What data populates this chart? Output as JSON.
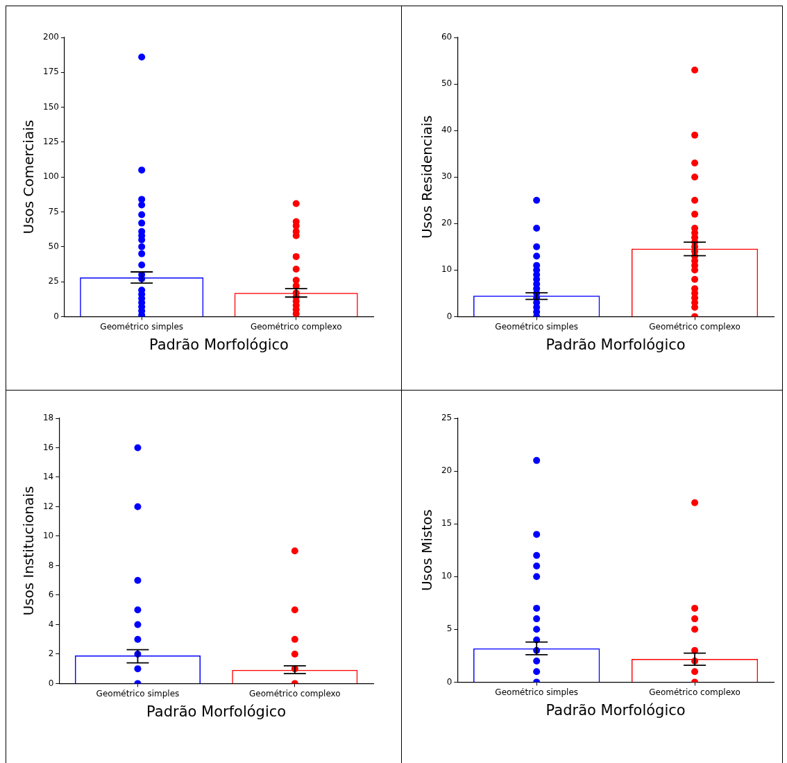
{
  "chart_data": [
    {
      "type": "bar",
      "xlabel": "Padrão Morfológico",
      "ylabel": "Usos Comerciais",
      "categories": [
        "Geométrico simples",
        "Geométrico complexo"
      ],
      "ylim": [
        0,
        200
      ],
      "yticks": [
        0,
        25,
        50,
        75,
        100,
        125,
        150,
        175,
        200
      ],
      "series": [
        {
          "colors": [
            "#0000ff",
            "#ff0000"
          ],
          "values": [
            28,
            17
          ],
          "errors": [
            [
              24,
              32
            ],
            [
              14,
              20
            ]
          ]
        },
        {
          "type": "scatter",
          "marker": "circle",
          "color": "#0000ff",
          "x": [
            "Geométrico simples",
            "Geométrico simples",
            "Geométrico simples",
            "Geométrico simples",
            "Geométrico simples",
            "Geométrico simples",
            "Geométrico simples",
            "Geométrico simples",
            "Geométrico simples",
            "Geométrico simples",
            "Geométrico simples",
            "Geométrico simples",
            "Geométrico simples",
            "Geométrico simples",
            "Geométrico simples",
            "Geométrico simples",
            "Geométrico simples",
            "Geométrico simples",
            "Geométrico simples",
            "Geométrico simples",
            "Geométrico simples"
          ],
          "values": [
            186,
            105,
            84,
            80,
            73,
            67,
            61,
            58,
            55,
            50,
            45,
            37,
            30,
            27,
            19,
            16,
            13,
            10,
            7,
            4,
            1
          ]
        },
        {
          "type": "scatter",
          "marker": "circle",
          "color": "#ff0000",
          "x": [
            "Geométrico complexo",
            "Geométrico complexo",
            "Geométrico complexo",
            "Geométrico complexo",
            "Geométrico complexo",
            "Geométrico complexo",
            "Geométrico complexo",
            "Geométrico complexo",
            "Geométrico complexo",
            "Geométrico complexo",
            "Geométrico complexo",
            "Geométrico complexo",
            "Geométrico complexo",
            "Geométrico complexo",
            "Geométrico complexo"
          ],
          "values": [
            81,
            68,
            65,
            61,
            58,
            43,
            34,
            26,
            22,
            17,
            14,
            11,
            8,
            5,
            2
          ]
        }
      ]
    },
    {
      "type": "bar",
      "xlabel": "Padrão Morfológico",
      "ylabel": "Usos Residenciais",
      "categories": [
        "Geométrico simples",
        "Geométrico complexo"
      ],
      "ylim": [
        0,
        60
      ],
      "yticks": [
        0,
        10,
        20,
        30,
        40,
        50,
        60
      ],
      "series": [
        {
          "colors": [
            "#0000ff",
            "#ff0000"
          ],
          "values": [
            4.5,
            14.6
          ],
          "errors": [
            [
              3.7,
              5.1
            ],
            [
              13.1,
              16
            ]
          ]
        },
        {
          "type": "scatter",
          "marker": "circle",
          "color": "#0000ff",
          "x": [
            "Geométrico simples",
            "Geométrico simples",
            "Geométrico simples",
            "Geométrico simples",
            "Geométrico simples",
            "Geométrico simples",
            "Geométrico simples",
            "Geométrico simples",
            "Geométrico simples",
            "Geométrico simples",
            "Geométrico simples",
            "Geométrico simples",
            "Geométrico simples",
            "Geométrico simples",
            "Geométrico simples",
            "Geométrico simples"
          ],
          "values": [
            25,
            19,
            15,
            13,
            11,
            10,
            9,
            8,
            7,
            6,
            5,
            4,
            3,
            2,
            1,
            0
          ]
        },
        {
          "type": "scatter",
          "marker": "circle",
          "color": "#ff0000",
          "x": [
            "Geométrico complexo",
            "Geométrico complexo",
            "Geométrico complexo",
            "Geométrico complexo",
            "Geométrico complexo",
            "Geométrico complexo",
            "Geométrico complexo",
            "Geométrico complexo",
            "Geométrico complexo",
            "Geométrico complexo",
            "Geométrico complexo",
            "Geométrico complexo",
            "Geométrico complexo",
            "Geométrico complexo",
            "Geométrico complexo",
            "Geométrico complexo",
            "Geométrico complexo",
            "Geométrico complexo",
            "Geométrico complexo",
            "Geométrico complexo",
            "Geométrico complexo",
            "Geométrico complexo",
            "Geométrico complexo"
          ],
          "values": [
            53,
            39,
            33,
            30,
            25,
            22,
            19,
            18,
            17,
            16,
            15,
            14,
            13,
            12,
            11,
            10,
            8,
            6,
            5,
            4,
            3,
            2,
            0
          ]
        }
      ]
    },
    {
      "type": "bar",
      "xlabel": "Padrão Morfológico",
      "ylabel": "Usos Institucionais",
      "categories": [
        "Geométrico simples",
        "Geométrico complexo"
      ],
      "ylim": [
        0,
        18
      ],
      "yticks": [
        0,
        2,
        4,
        6,
        8,
        10,
        12,
        14,
        16,
        18
      ],
      "series": [
        {
          "colors": [
            "#0000ff",
            "#ff0000"
          ],
          "values": [
            1.9,
            0.93
          ],
          "errors": [
            [
              1.4,
              2.3
            ],
            [
              0.67,
              1.2
            ]
          ]
        },
        {
          "type": "scatter",
          "marker": "circle",
          "color": "#0000ff",
          "x": [
            "Geométrico simples",
            "Geométrico simples",
            "Geométrico simples",
            "Geométrico simples",
            "Geométrico simples",
            "Geométrico simples",
            "Geométrico simples",
            "Geométrico simples",
            "Geométrico simples"
          ],
          "values": [
            16,
            12,
            7,
            5,
            4,
            3,
            2,
            1,
            0
          ]
        },
        {
          "type": "scatter",
          "marker": "circle",
          "color": "#ff0000",
          "x": [
            "Geométrico complexo",
            "Geométrico complexo",
            "Geométrico complexo",
            "Geométrico complexo",
            "Geométrico complexo",
            "Geométrico complexo"
          ],
          "values": [
            9,
            5,
            3,
            2,
            1,
            0
          ]
        }
      ]
    },
    {
      "type": "bar",
      "xlabel": "Padrão Morfológico",
      "ylabel": "Usos Mistos",
      "categories": [
        "Geométrico simples",
        "Geométrico complexo"
      ],
      "ylim": [
        0,
        25
      ],
      "yticks": [
        0,
        5,
        10,
        15,
        20,
        25
      ],
      "series": [
        {
          "colors": [
            "#0000ff",
            "#ff0000"
          ],
          "values": [
            3.2,
            2.2
          ],
          "errors": [
            [
              2.6,
              3.8
            ],
            [
              1.6,
              2.75
            ]
          ]
        },
        {
          "type": "scatter",
          "marker": "circle",
          "color": "#0000ff",
          "x": [
            "Geométrico simples",
            "Geométrico simples",
            "Geométrico simples",
            "Geométrico simples",
            "Geométrico simples",
            "Geométrico simples",
            "Geométrico simples",
            "Geométrico simples",
            "Geométrico simples",
            "Geométrico simples",
            "Geométrico simples",
            "Geométrico simples",
            "Geométrico simples"
          ],
          "values": [
            21,
            14,
            12,
            11,
            10,
            7,
            6,
            5,
            4,
            3,
            2,
            1,
            0
          ]
        },
        {
          "type": "scatter",
          "marker": "circle",
          "color": "#ff0000",
          "x": [
            "Geométrico complexo",
            "Geométrico complexo",
            "Geométrico complexo",
            "Geométrico complexo",
            "Geométrico complexo",
            "Geométrico complexo",
            "Geométrico complexo",
            "Geométrico complexo"
          ],
          "values": [
            17,
            7,
            6,
            5,
            3,
            2,
            1,
            0
          ]
        }
      ]
    }
  ]
}
